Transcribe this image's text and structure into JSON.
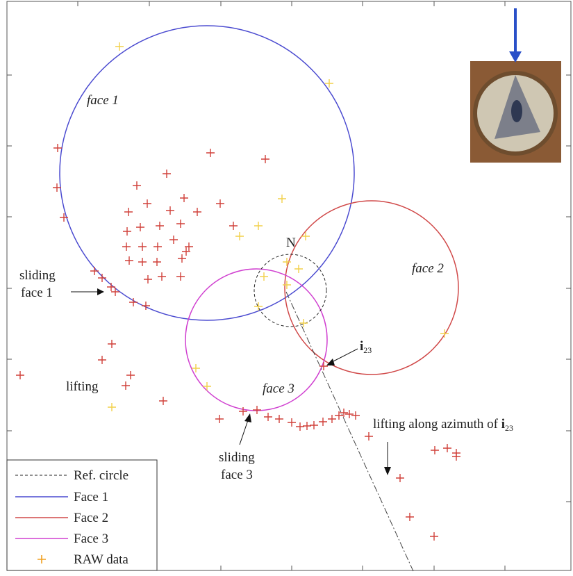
{
  "annotations": {
    "face_1": "face 1",
    "face_2": "face 2",
    "face_3": "face 3",
    "n": "N",
    "sliding_face_1": [
      "sliding",
      "face 1"
    ],
    "lifting": "lifting",
    "i23": {
      "symbol": "i",
      "subscript": "23"
    },
    "sliding_face_3": [
      "sliding",
      "face 3"
    ],
    "lifting_azimuth": {
      "text": "lifting along azimuth of ",
      "symbol": "i",
      "subscript": "23"
    }
  },
  "legend": [
    "Ref. circle",
    "Face 1",
    "Face 2",
    "Face 3",
    "RAW data"
  ]
}
